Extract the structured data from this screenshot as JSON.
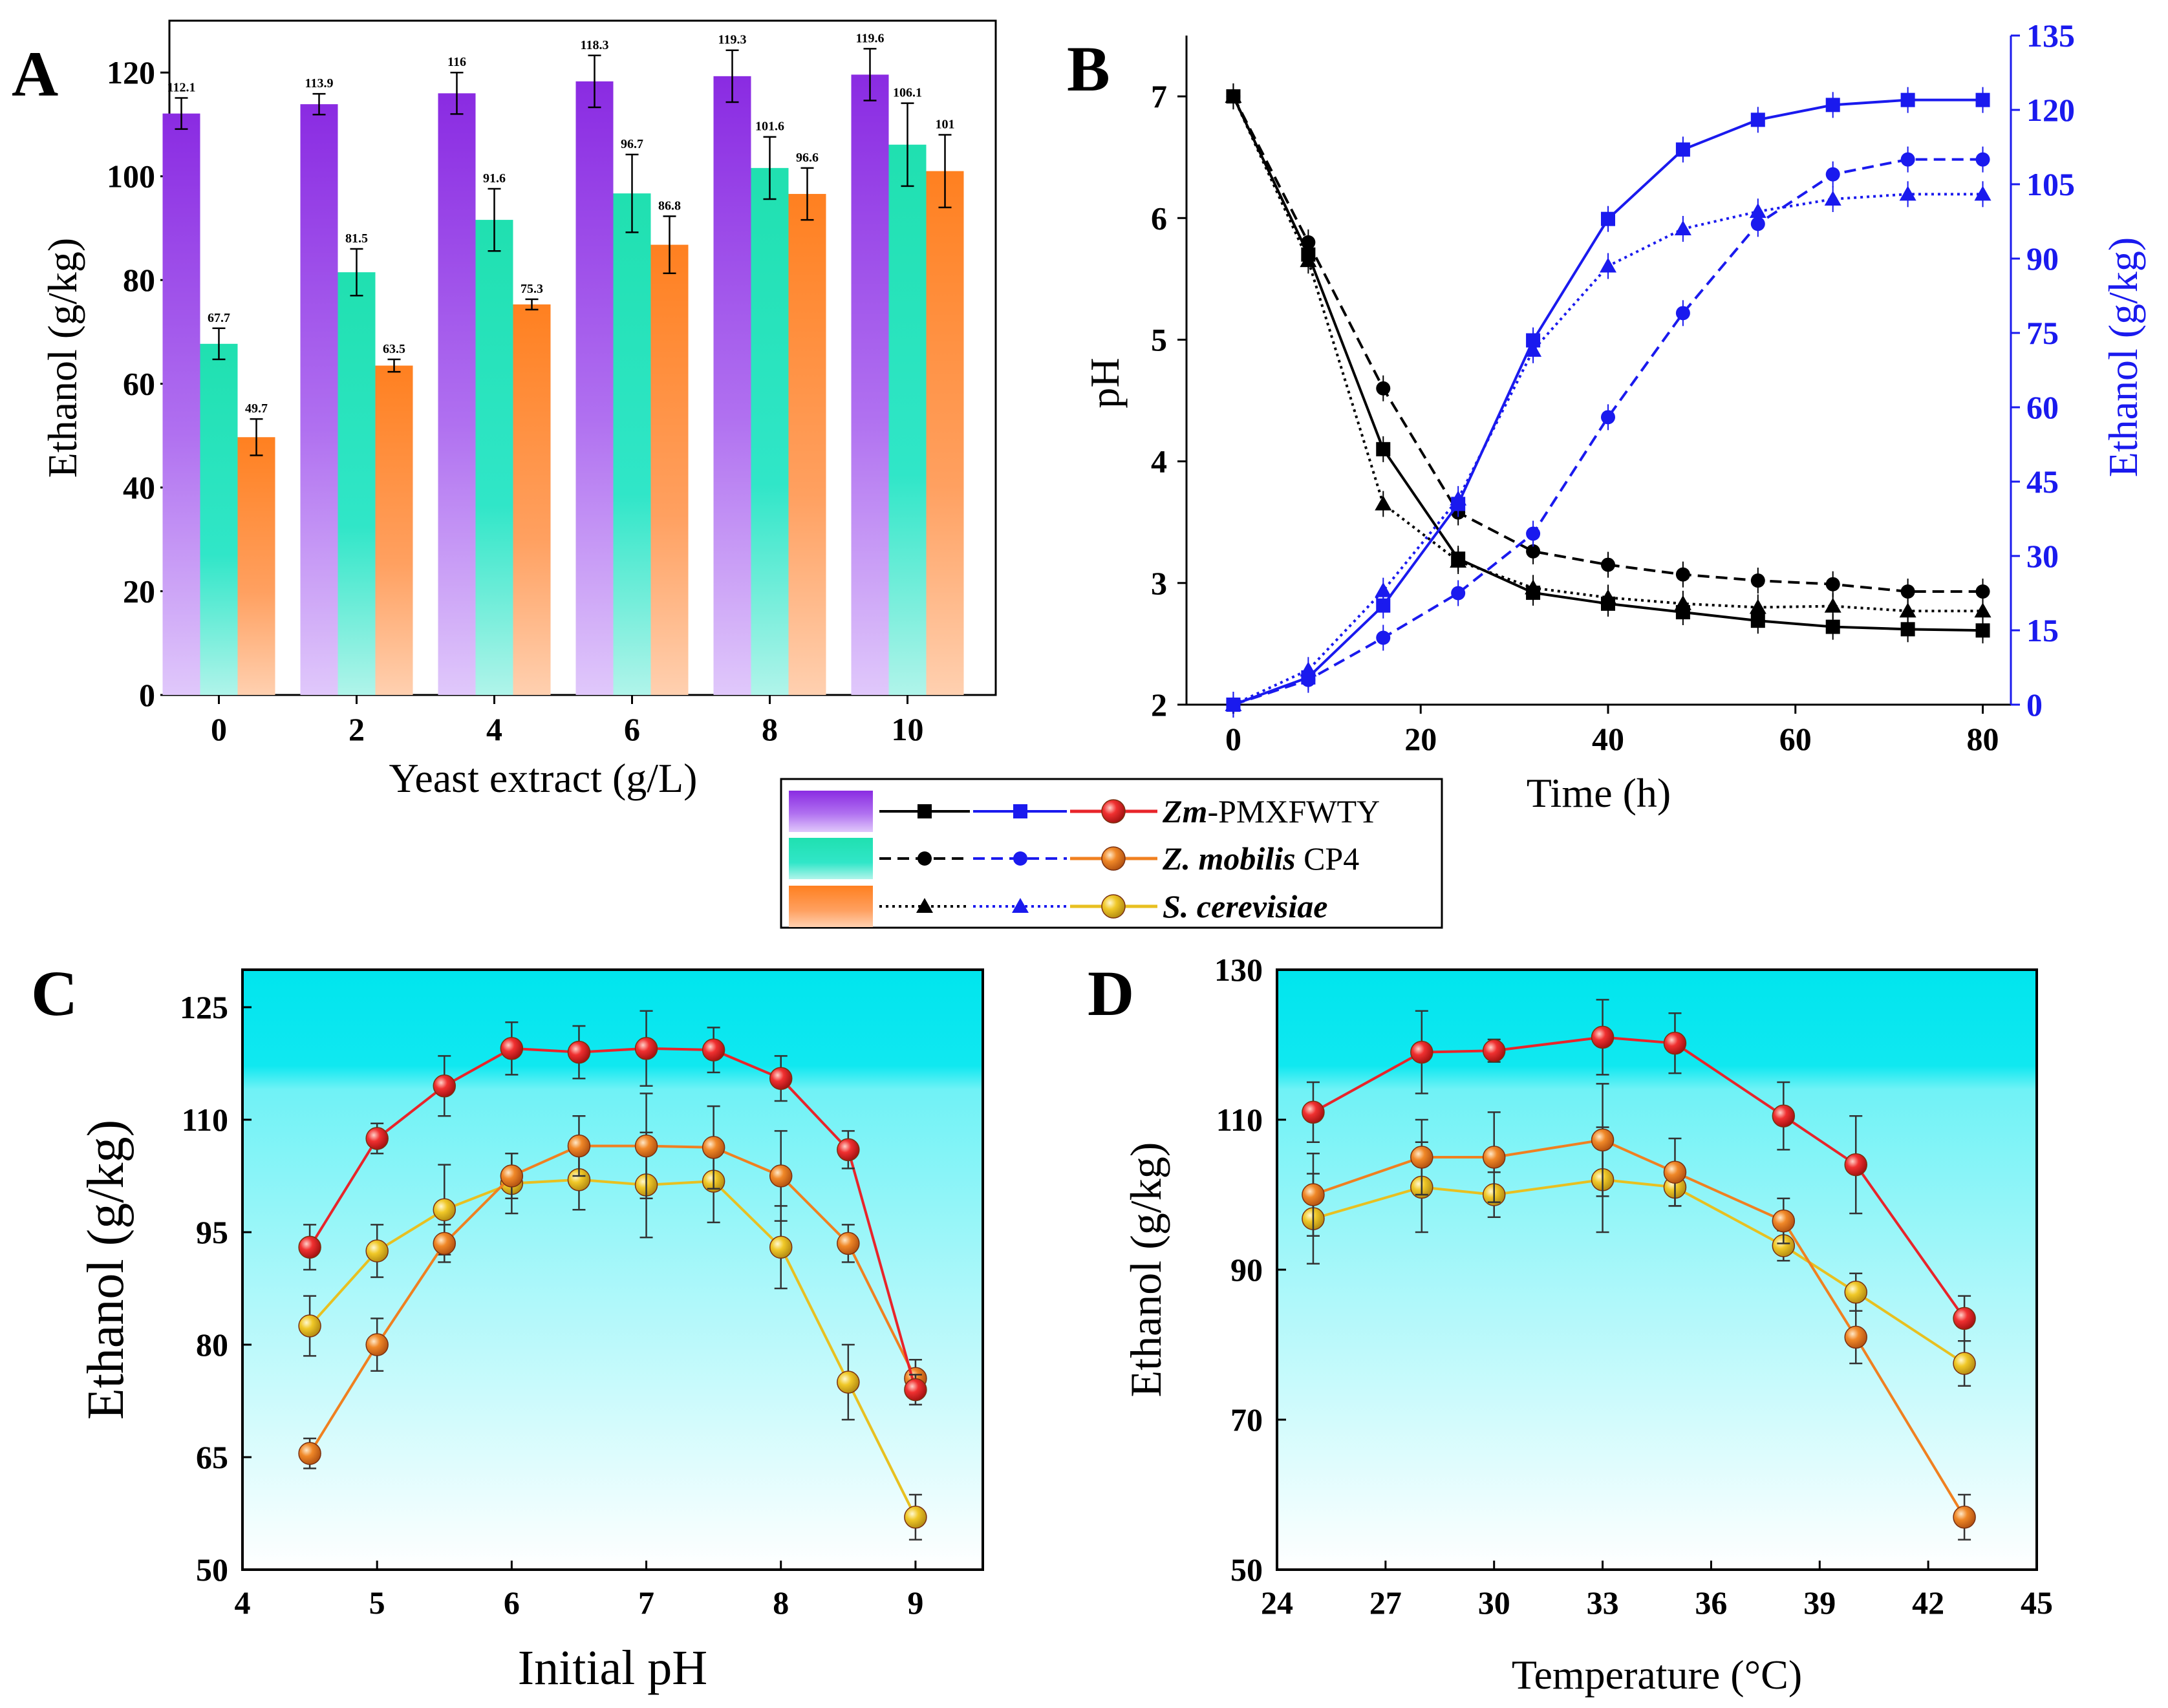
{
  "colors": {
    "zm_bar": "#8a2be2",
    "cp4_bar": "#20e0b0",
    "sc_bar": "#ff8c2a",
    "zm_dot": "#e8242a",
    "cp4_dot": "#f08020",
    "sc_dot": "#e8c020",
    "ph_line": "#000000",
    "eth_line": "#1a1aee",
    "bg_top": "#00e5ee"
  },
  "legend": {
    "entries": [
      {
        "italic": "Zm",
        "rest": "-PMXFWTY",
        "bold_italic_all": false
      },
      {
        "italic": "Z. mobilis",
        "rest": " CP4"
      },
      {
        "italic": "S. cerevisiae",
        "rest": ""
      }
    ]
  },
  "chart_data": [
    {
      "panel": "A",
      "type": "bar",
      "title": "",
      "xlabel": "Yeast extract (g/L)",
      "ylabel": "Ethanol (g/kg)",
      "ylim": [
        0,
        130
      ],
      "yticks": [
        "0",
        "20",
        "40",
        "60",
        "80",
        "100",
        "120"
      ],
      "categories": [
        "0",
        "2",
        "4",
        "6",
        "8",
        "10"
      ],
      "series": [
        {
          "name": "Zm-PMXFWTY",
          "values": [
            112.1,
            113.9,
            116,
            118.3,
            119.3,
            119.6
          ],
          "labels": [
            "112.1",
            "113.9",
            "116",
            "118.3",
            "119.3",
            "119.6"
          ],
          "err": [
            3,
            2,
            4,
            5,
            5,
            5
          ]
        },
        {
          "name": "Z. mobilis CP4",
          "values": [
            67.7,
            81.5,
            91.6,
            96.7,
            101.6,
            106.1
          ],
          "labels": [
            "67.7",
            "81.5",
            "91.6",
            "96.7",
            "101.6",
            "106.1"
          ],
          "err": [
            3,
            4.5,
            6,
            7.5,
            6,
            8
          ]
        },
        {
          "name": "S. cerevisiae",
          "values": [
            49.7,
            63.5,
            75.3,
            86.8,
            96.6,
            101
          ],
          "labels": [
            "49.7",
            "63.5",
            "75.3",
            "86.8",
            "96.6",
            "101"
          ],
          "err": [
            3.5,
            1.2,
            1,
            5.5,
            5,
            7
          ]
        }
      ]
    },
    {
      "panel": "B",
      "type": "line",
      "xlabel": "Time (h)",
      "ylabel": "pH",
      "y2label": "Ethanol (g/kg)",
      "xlim": [
        -5,
        83
      ],
      "ylim": [
        2,
        7.5
      ],
      "y2lim": [
        0,
        135
      ],
      "xticks": [
        "0",
        "20",
        "40",
        "60",
        "80"
      ],
      "yticks": [
        "2",
        "3",
        "4",
        "5",
        "6",
        "7"
      ],
      "y2ticks": [
        "0",
        "15",
        "30",
        "45",
        "60",
        "75",
        "90",
        "105",
        "120",
        "135"
      ],
      "x": [
        0,
        8,
        16,
        24,
        32,
        40,
        48,
        56,
        64,
        72,
        80
      ],
      "ph_series": [
        {
          "name": "Zm-PMXFWTY",
          "marker": "square",
          "dash": "solid",
          "values": [
            7.0,
            5.7,
            4.1,
            3.2,
            2.92,
            2.83,
            2.76,
            2.69,
            2.64,
            2.62,
            2.61
          ]
        },
        {
          "name": "Z. mobilis CP4",
          "marker": "circle",
          "dash": "dashed",
          "values": [
            7.0,
            5.8,
            4.6,
            3.58,
            3.26,
            3.15,
            3.07,
            3.02,
            2.99,
            2.93,
            2.93
          ]
        },
        {
          "name": "S. cerevisiae",
          "marker": "triangle",
          "dash": "dotted",
          "values": [
            7.0,
            5.65,
            3.65,
            3.18,
            2.96,
            2.88,
            2.83,
            2.8,
            2.81,
            2.77,
            2.77
          ]
        }
      ],
      "eth_series": [
        {
          "name": "Zm-PMXFWTY",
          "marker": "square",
          "dash": "solid",
          "values": [
            0,
            5.5,
            20,
            40.5,
            73.5,
            98,
            112,
            118,
            121,
            122,
            122
          ]
        },
        {
          "name": "Z. mobilis CP4",
          "marker": "circle",
          "dash": "dashed",
          "values": [
            0,
            5,
            13.5,
            22.5,
            34.5,
            58,
            79,
            97,
            107,
            110,
            110
          ]
        },
        {
          "name": "S. cerevisiae",
          "marker": "triangle",
          "dash": "dotted",
          "values": [
            0,
            7,
            23,
            41.5,
            71.5,
            88.5,
            96,
            99.5,
            102,
            103,
            103
          ]
        }
      ]
    },
    {
      "panel": "C",
      "type": "line",
      "xlabel": "Initial pH",
      "ylabel": "Ethanol (g/kg)",
      "xlim": [
        4,
        9.5
      ],
      "ylim": [
        50,
        130
      ],
      "xticks": [
        "4",
        "5",
        "6",
        "7",
        "8",
        "9"
      ],
      "yticks": [
        "50",
        "65",
        "80",
        "95",
        "110",
        "125"
      ],
      "x": [
        4.5,
        5,
        5.5,
        6,
        6.5,
        7,
        7.5,
        8,
        8.5,
        9
      ],
      "series": [
        {
          "name": "Zm-PMXFWTY",
          "values": [
            93,
            107.5,
            114.5,
            119.5,
            119,
            119.5,
            119.3,
            115.5,
            106,
            74
          ],
          "err": [
            3,
            2,
            4,
            3.5,
            3.5,
            5,
            3,
            3,
            2.5,
            2
          ]
        },
        {
          "name": "Z. mobilis CP4",
          "values": [
            65.5,
            80,
            93.5,
            102.5,
            106.5,
            106.5,
            106.3,
            102.5,
            93.5,
            75.5
          ],
          "err": [
            2,
            3.5,
            2.5,
            3,
            4,
            7,
            5.5,
            6,
            2.5,
            2.5
          ]
        },
        {
          "name": "S. cerevisiae",
          "values": [
            82.5,
            92.5,
            98,
            101.5,
            102,
            101.3,
            101.8,
            93,
            75,
            57
          ],
          "err": [
            4,
            3.5,
            6,
            4,
            4,
            7,
            5.5,
            5.5,
            5,
            3
          ]
        }
      ]
    },
    {
      "panel": "D",
      "type": "line",
      "xlabel": "Temperature (°C)",
      "ylabel": "Ethanol (g/kg)",
      "xlim": [
        24,
        45
      ],
      "ylim": [
        50,
        130
      ],
      "xticks": [
        "24",
        "27",
        "30",
        "33",
        "36",
        "39",
        "42",
        "45"
      ],
      "yticks": [
        "50",
        "70",
        "90",
        "110",
        "130"
      ],
      "x": [
        25,
        28,
        30,
        33,
        35,
        38,
        40,
        43
      ],
      "series": [
        {
          "name": "Zm-PMXFWTY",
          "values": [
            111,
            119,
            119.2,
            121,
            120.2,
            110.5,
            104,
            83.5
          ],
          "err": [
            4,
            5.5,
            1.5,
            5,
            4,
            4.5,
            6.5,
            3
          ]
        },
        {
          "name": "Z. mobilis CP4",
          "values": [
            100,
            105,
            105,
            107.3,
            103,
            96.5,
            81,
            57
          ],
          "err": [
            5.5,
            5,
            6,
            7.5,
            4.5,
            3,
            3.5,
            3
          ]
        },
        {
          "name": "S. cerevisiae",
          "values": [
            96.8,
            101,
            100,
            102,
            101,
            93.2,
            87,
            77.5
          ],
          "err": [
            6,
            6,
            3,
            7,
            2.5,
            2,
            2.5,
            3
          ]
        }
      ]
    }
  ],
  "panels": [
    "A",
    "B",
    "C",
    "D"
  ]
}
